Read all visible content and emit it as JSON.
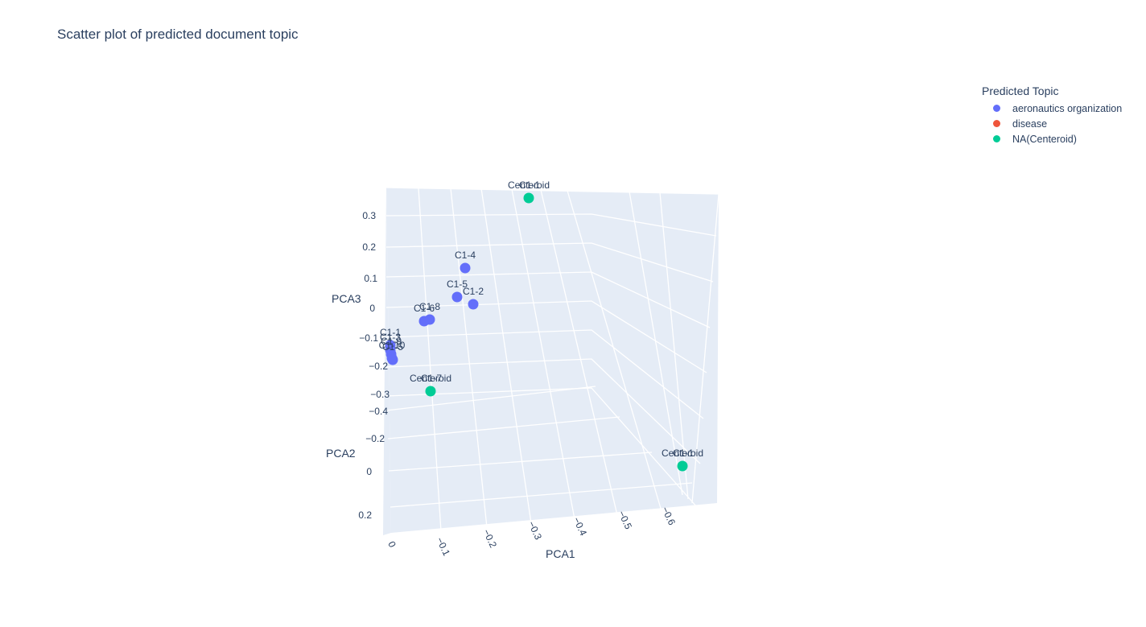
{
  "chart_data": {
    "type": "scatter",
    "title": "Scatter plot of predicted document topic",
    "legend": {
      "title": "Predicted Topic",
      "position": "top-right",
      "entries": [
        {
          "name": "aeronautics organization",
          "color": "#636efa"
        },
        {
          "name": "disease",
          "color": "#ef553b"
        },
        {
          "name": "NA(Centeroid)",
          "color": "#00cc96"
        }
      ]
    },
    "axes": {
      "x": {
        "label": "PCA1",
        "ticks": [
          "0",
          "−0.1",
          "−0.2",
          "−0.3",
          "−0.4",
          "−0.5",
          "−0.6"
        ]
      },
      "y": {
        "label": "PCA2",
        "ticks": [
          "−0.4",
          "−0.2",
          "0",
          "0.2"
        ]
      },
      "z": {
        "label": "PCA3",
        "ticks": [
          "0.3",
          "0.2",
          "0.1",
          "0",
          "−0.1",
          "−0.2",
          "−0.3"
        ]
      }
    },
    "series": [
      {
        "name": "aeronautics organization",
        "color": "#636efa",
        "points": [
          {
            "label": "C1-4",
            "pca1": -0.15,
            "pca3": 0.13
          },
          {
            "label": "C1-5",
            "pca1": -0.13,
            "pca3": 0.04
          },
          {
            "label": "C1-2",
            "pca1": -0.17,
            "pca3": 0.03
          },
          {
            "label": "C1-8",
            "pca1": -0.08,
            "pca3": -0.03
          },
          {
            "label": "C1-6",
            "pca1": -0.07,
            "pca3": -0.04
          },
          {
            "label": "C1-1",
            "pca1": 0.0,
            "pca3": -0.12
          },
          {
            "label": "C1-3",
            "pca1": 0.0,
            "pca3": -0.13
          },
          {
            "label": "C1-9",
            "pca1": 0.0,
            "pca3": -0.14
          },
          {
            "label": "C1-10",
            "pca1": 0.0,
            "pca3": -0.15
          },
          {
            "label": "C1-5",
            "pca1": 0.0,
            "pca3": -0.16
          }
        ]
      },
      {
        "name": "NA(Centeroid)",
        "color": "#00cc96",
        "points": [
          {
            "label": "Centeroid",
            "overlap": "C1-1",
            "pca1": -0.3,
            "pca3": 0.32
          },
          {
            "label": "Centeroid",
            "overlap": "C1-7",
            "pca1": -0.08,
            "pca3": -0.3
          },
          {
            "label": "Centeroid",
            "overlap": "C1-1",
            "pca1": -0.65,
            "pca3": -0.5
          }
        ]
      }
    ]
  }
}
